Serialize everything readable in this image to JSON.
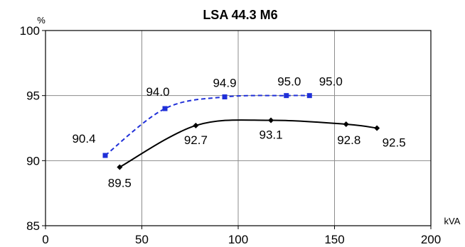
{
  "chart_data": {
    "type": "line",
    "title": "LSA 44.3 M6",
    "ylabel": "%",
    "xlabel": "kVA",
    "xlim": [
      0,
      200
    ],
    "ylim": [
      85,
      100
    ],
    "xticks": [
      0,
      50,
      100,
      150,
      200
    ],
    "yticks": [
      85,
      90,
      95,
      100
    ],
    "grid": true,
    "series": [
      {
        "style": "dashed",
        "color": "#1f2fd8",
        "marker": "square",
        "x": [
          31,
          62,
          93,
          125,
          137
        ],
        "y": [
          90.4,
          94.0,
          94.9,
          95.0,
          95.0
        ],
        "labels": [
          "90.4",
          "94.0",
          "94.9",
          "95.0",
          "95.0"
        ]
      },
      {
        "style": "solid",
        "color": "#000000",
        "marker": "diamond",
        "x": [
          38.5,
          78,
          117,
          156,
          172
        ],
        "y": [
          89.5,
          92.7,
          93.1,
          92.8,
          92.5
        ],
        "labels": [
          "89.5",
          "92.7",
          "93.1",
          "92.8",
          "92.5"
        ]
      }
    ]
  }
}
